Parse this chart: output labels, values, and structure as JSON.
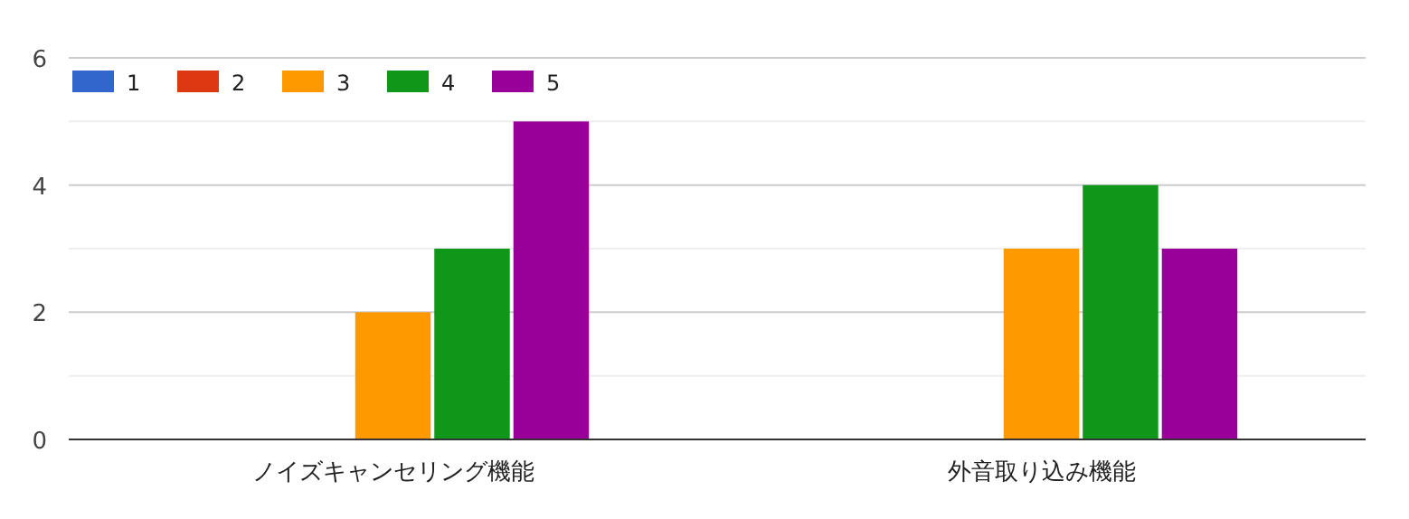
{
  "chart_data": {
    "type": "bar",
    "categories": [
      "ノイズキャンセリング機能",
      "外音取り込み機能"
    ],
    "series": [
      {
        "name": "1",
        "color": "#3366cc",
        "values": [
          0,
          0
        ]
      },
      {
        "name": "2",
        "color": "#dc3912",
        "values": [
          0,
          0
        ]
      },
      {
        "name": "3",
        "color": "#ff9900",
        "values": [
          2,
          3
        ]
      },
      {
        "name": "4",
        "color": "#109618",
        "values": [
          3,
          4
        ]
      },
      {
        "name": "5",
        "color": "#990099",
        "values": [
          5,
          3
        ]
      }
    ],
    "ylim": [
      0,
      6
    ],
    "yticks": [
      0,
      {
        "value": 1,
        "label": null
      },
      2,
      {
        "value": 3,
        "label": null
      },
      4,
      {
        "value": 5,
        "label": null
      },
      6
    ],
    "grid": "y",
    "legend": "top left"
  }
}
